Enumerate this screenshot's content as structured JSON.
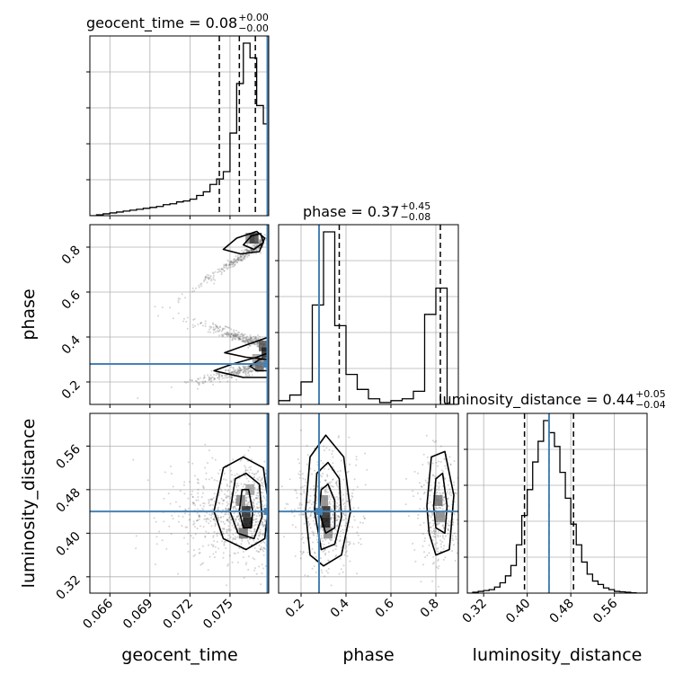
{
  "chart_data": {
    "type": "corner",
    "parameters": [
      "geocent_time",
      "phase",
      "luminosity_distance"
    ],
    "truths": {
      "geocent_time": 0.0778,
      "phase": 0.28,
      "luminosity_distance": 0.44
    },
    "colors": {
      "truth": "#4682b4",
      "hist": "#000000",
      "grid": "#b0b0b0",
      "points": "#555555"
    },
    "grid": true,
    "titles": {
      "geocent_time": {
        "label": "geocent_time = 0.08",
        "plus": "+0.00",
        "minus": "−0.00"
      },
      "phase": {
        "label": "phase = 0.37",
        "plus": "+0.45",
        "minus": "−0.08"
      },
      "luminosity_distance": {
        "label": "luminosity_distance = 0.44",
        "plus": "+0.05",
        "minus": "−0.04"
      }
    },
    "axes": {
      "geocent_time": {
        "range": [
          0.0645,
          0.0779
        ],
        "ticks": [
          0.066,
          0.069,
          0.072,
          0.075
        ],
        "tick_labels": [
          "0.066",
          "0.069",
          "0.072",
          "0.075"
        ],
        "label": "geocent_time"
      },
      "phase": {
        "range": [
          0.1,
          0.9
        ],
        "ticks": [
          0.2,
          0.4,
          0.6,
          0.8
        ],
        "tick_labels": [
          "0.2",
          "0.4",
          "0.6",
          "0.8"
        ],
        "label": "phase"
      },
      "luminosity_distance": {
        "range": [
          0.29,
          0.62
        ],
        "ticks": [
          0.32,
          0.4,
          0.48,
          0.56
        ],
        "tick_labels": [
          "0.32",
          "0.40",
          "0.48",
          "0.56"
        ],
        "label": "luminosity_distance"
      }
    },
    "quantiles": {
      "geocent_time": [
        0.0742,
        0.0757,
        0.0769
      ],
      "phase": [
        0.28,
        0.37,
        0.82
      ],
      "luminosity_distance": [
        0.395,
        0.44,
        0.485
      ]
    },
    "hist_geocent_time": {
      "edges": [
        0.0645,
        0.065,
        0.0655,
        0.066,
        0.0665,
        0.067,
        0.0675,
        0.068,
        0.0685,
        0.069,
        0.0695,
        0.07,
        0.0705,
        0.071,
        0.0715,
        0.072,
        0.0725,
        0.073,
        0.0735,
        0.074,
        0.0745,
        0.075,
        0.0755,
        0.076,
        0.0765,
        0.077,
        0.0775,
        0.0779
      ],
      "counts": [
        0,
        0.005,
        0.01,
        0.015,
        0.02,
        0.025,
        0.03,
        0.035,
        0.04,
        0.045,
        0.05,
        0.06,
        0.065,
        0.075,
        0.08,
        0.09,
        0.11,
        0.13,
        0.17,
        0.2,
        0.24,
        0.45,
        0.72,
        0.94,
        0.86,
        0.6,
        0.5
      ]
    },
    "hist_phase": {
      "edges": [
        0.1,
        0.15,
        0.2,
        0.25,
        0.3,
        0.35,
        0.4,
        0.45,
        0.5,
        0.55,
        0.6,
        0.65,
        0.7,
        0.75,
        0.8,
        0.85,
        0.9
      ],
      "counts": [
        0.02,
        0.05,
        0.12,
        0.53,
        0.92,
        0.42,
        0.16,
        0.08,
        0.03,
        0.01,
        0.02,
        0.03,
        0.07,
        0.48,
        0.62,
        0.0
      ]
    },
    "hist_luminosity_distance": {
      "edges": [
        0.29,
        0.3,
        0.31,
        0.32,
        0.33,
        0.34,
        0.35,
        0.36,
        0.37,
        0.38,
        0.39,
        0.4,
        0.41,
        0.42,
        0.43,
        0.44,
        0.45,
        0.46,
        0.47,
        0.48,
        0.49,
        0.5,
        0.51,
        0.52,
        0.53,
        0.54,
        0.55,
        0.56,
        0.57,
        0.58,
        0.59,
        0.6,
        0.61,
        0.62
      ],
      "counts": [
        0,
        0.005,
        0.01,
        0.015,
        0.02,
        0.035,
        0.06,
        0.1,
        0.16,
        0.28,
        0.45,
        0.6,
        0.76,
        0.88,
        1.0,
        0.93,
        0.85,
        0.7,
        0.55,
        0.4,
        0.28,
        0.18,
        0.11,
        0.07,
        0.05,
        0.03,
        0.02,
        0.01,
        0.008,
        0.005,
        0.002,
        0,
        0
      ]
    },
    "heat_geo_phase": [
      {
        "x": 0.0765,
        "y": 0.84,
        "v": 0.5
      },
      {
        "x": 0.0768,
        "y": 0.84,
        "v": 0.8
      },
      {
        "x": 0.0775,
        "y": 0.36,
        "v": 0.7
      },
      {
        "x": 0.0777,
        "y": 0.33,
        "v": 0.9
      },
      {
        "x": 0.077,
        "y": 0.3,
        "v": 0.4
      },
      {
        "x": 0.0772,
        "y": 0.27,
        "v": 0.6
      }
    ],
    "contours_geo_phase": [
      [
        [
          0.0745,
          0.79
        ],
        [
          0.0755,
          0.84
        ],
        [
          0.077,
          0.87
        ],
        [
          0.0776,
          0.84
        ],
        [
          0.0772,
          0.78
        ],
        [
          0.0758,
          0.77
        ]
      ],
      [
        [
          0.076,
          0.81
        ],
        [
          0.0766,
          0.85
        ],
        [
          0.0773,
          0.86
        ],
        [
          0.0775,
          0.82
        ],
        [
          0.0768,
          0.79
        ]
      ],
      [
        [
          0.0738,
          0.25
        ],
        [
          0.0752,
          0.28
        ],
        [
          0.077,
          0.31
        ],
        [
          0.0779,
          0.33
        ],
        [
          0.0779,
          0.22
        ],
        [
          0.076,
          0.22
        ]
      ],
      [
        [
          0.0746,
          0.33
        ],
        [
          0.076,
          0.36
        ],
        [
          0.0779,
          0.4
        ],
        [
          0.0779,
          0.3
        ],
        [
          0.0762,
          0.31
        ]
      ],
      [
        [
          0.0765,
          0.27
        ],
        [
          0.0772,
          0.3
        ],
        [
          0.0779,
          0.3
        ],
        [
          0.0779,
          0.25
        ],
        [
          0.077,
          0.25
        ]
      ]
    ],
    "heat_geo_dist": [
      {
        "x": 0.0758,
        "y": 0.46,
        "v": 0.5
      },
      {
        "x": 0.0762,
        "y": 0.44,
        "v": 0.9
      },
      {
        "x": 0.0763,
        "y": 0.42,
        "v": 1.0
      },
      {
        "x": 0.076,
        "y": 0.4,
        "v": 0.6
      },
      {
        "x": 0.0765,
        "y": 0.48,
        "v": 0.4
      }
    ],
    "contours_geo_dist": [
      [
        [
          0.0738,
          0.44
        ],
        [
          0.0745,
          0.52
        ],
        [
          0.076,
          0.54
        ],
        [
          0.0775,
          0.52
        ],
        [
          0.0779,
          0.45
        ],
        [
          0.0776,
          0.39
        ],
        [
          0.0762,
          0.37
        ],
        [
          0.0745,
          0.39
        ]
      ],
      [
        [
          0.075,
          0.44
        ],
        [
          0.0754,
          0.5
        ],
        [
          0.0762,
          0.51
        ],
        [
          0.0772,
          0.49
        ],
        [
          0.0774,
          0.43
        ],
        [
          0.0768,
          0.39
        ],
        [
          0.0756,
          0.4
        ]
      ],
      [
        [
          0.0757,
          0.44
        ],
        [
          0.0759,
          0.48
        ],
        [
          0.0764,
          0.48
        ],
        [
          0.0767,
          0.44
        ],
        [
          0.0766,
          0.41
        ],
        [
          0.076,
          0.41
        ]
      ]
    ],
    "heat_phase_dist": [
      {
        "x": 0.3,
        "y": 0.46,
        "v": 0.5
      },
      {
        "x": 0.31,
        "y": 0.44,
        "v": 0.9
      },
      {
        "x": 0.31,
        "y": 0.42,
        "v": 1.0
      },
      {
        "x": 0.32,
        "y": 0.4,
        "v": 0.5
      },
      {
        "x": 0.81,
        "y": 0.46,
        "v": 0.6
      },
      {
        "x": 0.82,
        "y": 0.43,
        "v": 0.5
      }
    ],
    "contours_phase_dist": [
      [
        [
          0.22,
          0.44
        ],
        [
          0.24,
          0.54
        ],
        [
          0.31,
          0.58
        ],
        [
          0.39,
          0.54
        ],
        [
          0.42,
          0.44
        ],
        [
          0.38,
          0.36
        ],
        [
          0.3,
          0.34
        ],
        [
          0.24,
          0.36
        ]
      ],
      [
        [
          0.26,
          0.44
        ],
        [
          0.27,
          0.51
        ],
        [
          0.32,
          0.53
        ],
        [
          0.37,
          0.5
        ],
        [
          0.38,
          0.43
        ],
        [
          0.35,
          0.38
        ],
        [
          0.29,
          0.37
        ]
      ],
      [
        [
          0.28,
          0.44
        ],
        [
          0.29,
          0.48
        ],
        [
          0.32,
          0.49
        ],
        [
          0.35,
          0.46
        ],
        [
          0.35,
          0.41
        ],
        [
          0.31,
          0.4
        ]
      ],
      [
        [
          0.76,
          0.45
        ],
        [
          0.78,
          0.54
        ],
        [
          0.84,
          0.55
        ],
        [
          0.88,
          0.47
        ],
        [
          0.86,
          0.37
        ],
        [
          0.8,
          0.36
        ],
        [
          0.77,
          0.4
        ]
      ],
      [
        [
          0.79,
          0.45
        ],
        [
          0.8,
          0.5
        ],
        [
          0.83,
          0.51
        ],
        [
          0.85,
          0.45
        ],
        [
          0.84,
          0.4
        ],
        [
          0.8,
          0.41
        ]
      ]
    ]
  }
}
